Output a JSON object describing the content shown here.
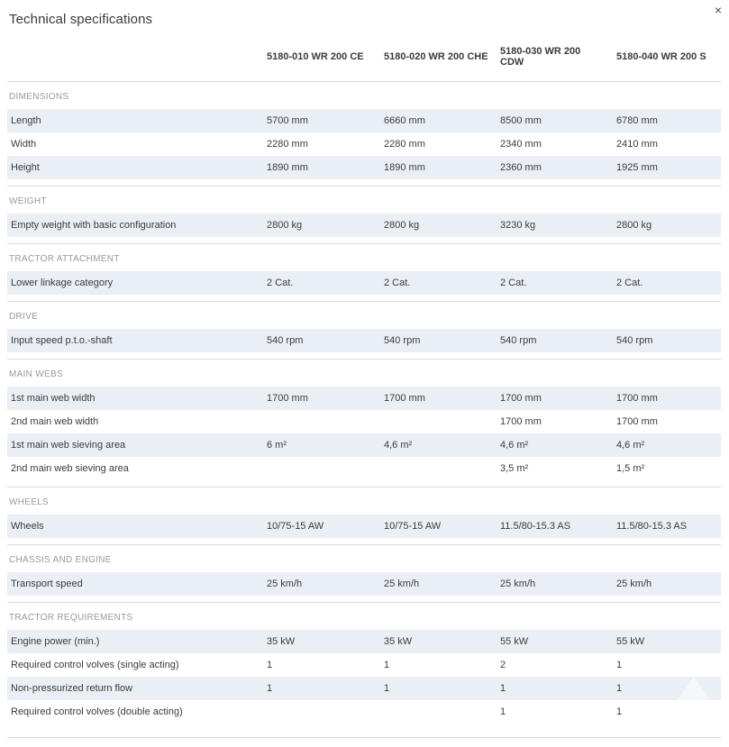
{
  "page": {
    "title": "Technical specifications",
    "close_icon": "×"
  },
  "table": {
    "columns": [
      "5180-010 WR 200 CE",
      "5180-020 WR 200 CHE",
      "5180-030 WR 200 CDW",
      "5180-040 WR 200 S"
    ],
    "sections": [
      {
        "title": "DIMENSIONS",
        "rows": [
          {
            "label": "Length",
            "values": [
              "5700 mm",
              "6660 mm",
              "8500 mm",
              "6780 mm"
            ]
          },
          {
            "label": "Width",
            "values": [
              "2280 mm",
              "2280 mm",
              "2340 mm",
              "2410 mm"
            ]
          },
          {
            "label": "Height",
            "values": [
              "1890 mm",
              "1890 mm",
              "2360 mm",
              "1925 mm"
            ]
          }
        ]
      },
      {
        "title": "WEIGHT",
        "rows": [
          {
            "label": "Empty weight with basic configuration",
            "values": [
              "2800 kg",
              "2800 kg",
              "3230 kg",
              "2800 kg"
            ]
          }
        ]
      },
      {
        "title": "TRACTOR ATTACHMENT",
        "rows": [
          {
            "label": "Lower linkage category",
            "values": [
              "2 Cat.",
              "2 Cat.",
              "2 Cat.",
              "2 Cat."
            ]
          }
        ]
      },
      {
        "title": "DRIVE",
        "rows": [
          {
            "label": "Input speed p.t.o.-shaft",
            "values": [
              "540 rpm",
              "540 rpm",
              "540 rpm",
              "540 rpm"
            ]
          }
        ]
      },
      {
        "title": "MAIN WEBS",
        "rows": [
          {
            "label": "1st main web width",
            "values": [
              "1700 mm",
              "1700 mm",
              "1700 mm",
              "1700 mm"
            ]
          },
          {
            "label": "2nd main web width",
            "values": [
              "",
              "",
              "1700 mm",
              "1700 mm"
            ]
          },
          {
            "label": "1st main web sieving area",
            "values": [
              "6 m²",
              "4,6 m²",
              "4,6 m²",
              "4,6 m²"
            ]
          },
          {
            "label": "2nd main web sieving area",
            "values": [
              "",
              "",
              "3,5 m²",
              "1,5 m²"
            ]
          }
        ]
      },
      {
        "title": "WHEELS",
        "rows": [
          {
            "label": "Wheels",
            "values": [
              "10/75-15 AW",
              "10/75-15 AW",
              "11.5/80-15.3 AS",
              "11.5/80-15.3 AS"
            ]
          }
        ]
      },
      {
        "title": "CHASSIS AND ENGINE",
        "rows": [
          {
            "label": "Transport speed",
            "values": [
              "25 km/h",
              "25 km/h",
              "25 km/h",
              "25 km/h"
            ]
          }
        ]
      },
      {
        "title": "TRACTOR REQUIREMENTS",
        "rows": [
          {
            "label": "Engine power (min.)",
            "values": [
              "35 kW",
              "35 kW",
              "55 kW",
              "55 kW"
            ]
          },
          {
            "label": "Required control volves (single acting)",
            "values": [
              "1",
              "1",
              "2",
              "1"
            ]
          },
          {
            "label": "Non-pressurized return flow",
            "values": [
              "1",
              "1",
              "1",
              "1"
            ]
          },
          {
            "label": "Required control volves (double acting)",
            "values": [
              "",
              "",
              "1",
              "1"
            ]
          }
        ]
      }
    ]
  },
  "icons": {
    "close": "close-icon",
    "scroll_top": "up-arrow-icon"
  },
  "colors": {
    "row_shade": "#e9eff5",
    "separator": "#dadada",
    "text": "#3b3b3b",
    "section_title": "#97999b",
    "background": "#ffffff"
  }
}
